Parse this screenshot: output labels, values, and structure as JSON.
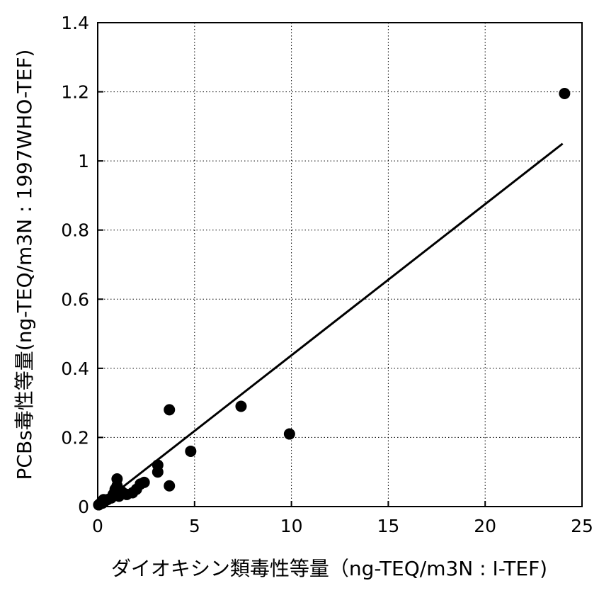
{
  "chart_data": {
    "type": "scatter",
    "xlabel": "ダイオキシン類毒性等量（ng-TEQ/m3N : I-TEF)",
    "ylabel": "PCBs毒性等量(ng-TEQ/m3N : 1997WHO-TEF)",
    "xlim": [
      0,
      25
    ],
    "ylim": [
      0,
      1.4
    ],
    "x_ticks": [
      0,
      5,
      10,
      15,
      20,
      25
    ],
    "y_ticks": [
      0,
      0.2,
      0.4,
      0.6,
      0.8,
      1,
      1.2,
      1.4
    ],
    "x_tick_labels": [
      "0",
      "5",
      "10",
      "15",
      "20",
      "25"
    ],
    "y_tick_labels": [
      "0",
      "0.2",
      "0.4",
      "0.6",
      "0.8",
      "1",
      "1.2",
      "1.4"
    ],
    "grid": "dotted",
    "points": [
      {
        "x": 0.05,
        "y": 0.005
      },
      {
        "x": 0.15,
        "y": 0.01
      },
      {
        "x": 0.25,
        "y": 0.01
      },
      {
        "x": 0.35,
        "y": 0.015
      },
      {
        "x": 0.3,
        "y": 0.02
      },
      {
        "x": 0.5,
        "y": 0.02
      },
      {
        "x": 0.7,
        "y": 0.025
      },
      {
        "x": 0.8,
        "y": 0.035
      },
      {
        "x": 0.9,
        "y": 0.05
      },
      {
        "x": 1.0,
        "y": 0.06
      },
      {
        "x": 1.0,
        "y": 0.08
      },
      {
        "x": 1.1,
        "y": 0.03
      },
      {
        "x": 1.2,
        "y": 0.045
      },
      {
        "x": 1.3,
        "y": 0.04
      },
      {
        "x": 1.5,
        "y": 0.035
      },
      {
        "x": 1.8,
        "y": 0.04
      },
      {
        "x": 2.0,
        "y": 0.05
      },
      {
        "x": 2.2,
        "y": 0.065
      },
      {
        "x": 2.4,
        "y": 0.07
      },
      {
        "x": 3.1,
        "y": 0.1
      },
      {
        "x": 3.1,
        "y": 0.12
      },
      {
        "x": 3.7,
        "y": 0.06
      },
      {
        "x": 3.7,
        "y": 0.28
      },
      {
        "x": 4.8,
        "y": 0.16
      },
      {
        "x": 7.4,
        "y": 0.29
      },
      {
        "x": 9.9,
        "y": 0.21
      },
      {
        "x": 24.1,
        "y": 1.195
      }
    ],
    "trendline": {
      "x": [
        0,
        24
      ],
      "y": [
        0,
        1.05
      ]
    }
  }
}
